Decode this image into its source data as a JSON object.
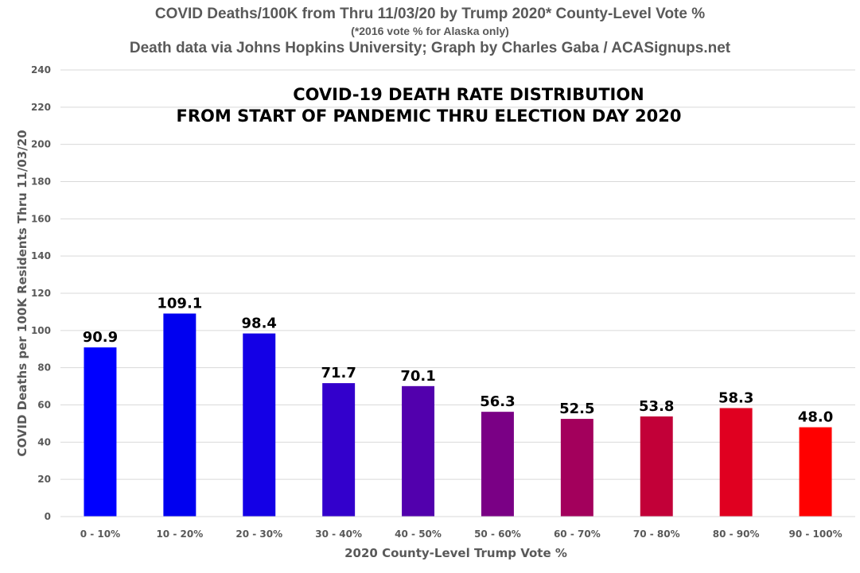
{
  "header": {
    "line1": "COVID Deaths/100K from Thru 11/03/20 by Trump 2020* County-Level Vote %",
    "line2": "(*2016 vote % for Alaska only)",
    "line3": "Death data via Johns Hopkins University; Graph by Charles Gaba / ACASignups.net"
  },
  "chart_data": {
    "type": "bar",
    "title": "COVID-19 DEATH RATE DISTRIBUTION",
    "subtitle": "FROM START OF PANDEMIC THRU ELECTION DAY 2020",
    "xlabel": "2020 County-Level Trump Vote %",
    "ylabel": "COVID Deaths per 100K Residents Thru 11/03/20",
    "ylim": [
      0,
      240
    ],
    "yticks": [
      "0",
      "20",
      "40",
      "60",
      "80",
      "100",
      "120",
      "140",
      "160",
      "180",
      "200",
      "220",
      "240"
    ],
    "grid": true,
    "categories": [
      "0 - 10%",
      "10 - 20%",
      "20 - 30%",
      "30 - 40%",
      "40 - 50%",
      "50 - 60%",
      "60 - 70%",
      "70 - 80%",
      "80 - 90%",
      "90 - 100%"
    ],
    "values": [
      90.9,
      109.1,
      98.4,
      71.7,
      70.1,
      56.3,
      52.5,
      53.8,
      58.3,
      48.0
    ],
    "data_labels": [
      "90.9",
      "109.1",
      "98.4",
      "71.7",
      "70.1",
      "56.3",
      "52.5",
      "53.8",
      "58.3",
      "48.0"
    ],
    "colors": [
      "#0000ff",
      "#0000f0",
      "#1400e6",
      "#3300cc",
      "#5200ad",
      "#7a0085",
      "#a3005c",
      "#c20038",
      "#e00020",
      "#ff0000"
    ],
    "axis_color": "#595959",
    "grid_color": "#d9d9d9"
  }
}
